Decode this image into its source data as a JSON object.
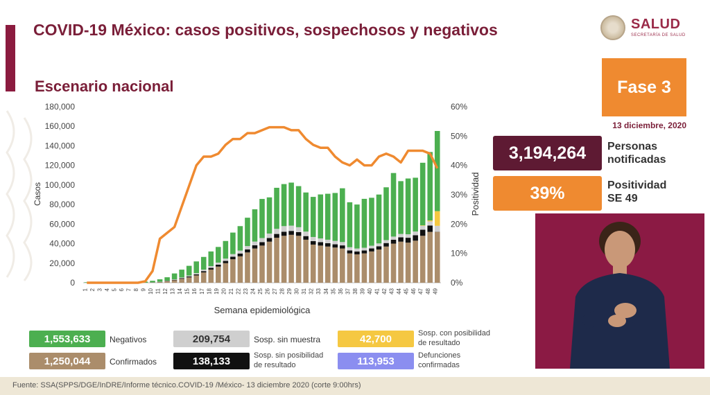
{
  "title": "COVID-19 México: casos positivos, sospechosos y negativos",
  "subtitle": "Escenario nacional",
  "logo": {
    "name": "SALUD",
    "sub": "SECRETARÍA DE SALUD"
  },
  "phase": "Fase 3",
  "date": "13 diciembre, 2020",
  "stats": [
    {
      "value": "3,194,264",
      "label_line1": "Personas",
      "label_line2": "notificadas",
      "color": "#5e1a33"
    },
    {
      "value": "39%",
      "label_line1": "Positividad",
      "label_line2": "SE 49",
      "color": "#ef8a30"
    }
  ],
  "legend": [
    {
      "value": "1,553,633",
      "label": "Negativos",
      "color": "#4caf50"
    },
    {
      "value": "209,754",
      "label": "Sosp. sin muestra",
      "color": "#cfcfcf"
    },
    {
      "value": "42,700",
      "label_line1": "Sosp. con posibilidad",
      "label_line2": "de resultado",
      "color": "#f5c842"
    },
    {
      "value": "1,250,044",
      "label": "Confirmados",
      "color": "#ab8d6b"
    },
    {
      "value": "138,133",
      "label_line1": "Sosp. sin posibilidad",
      "label_line2": "de resultado",
      "color": "#111111"
    },
    {
      "value": "113,953",
      "label_line1": "Defunciones",
      "label_line2": "confirmadas",
      "color": "#8b8ef0"
    }
  ],
  "footer": "Fuente: SSA(SPPS/DGE/InDRE/Informe técnico.COVID-19 /México- 13 diciembre 2020 (corte 9:00hrs)",
  "chart_data": {
    "type": "bar",
    "stacked": true,
    "xlabel": "Semana epidemiológica",
    "ylabel": "Casos",
    "y2label": "Positividad",
    "ylim": [
      0,
      180000
    ],
    "y2lim": [
      0,
      60
    ],
    "yticks": [
      "0",
      "20,000",
      "40,000",
      "60,000",
      "80,000",
      "100,000",
      "120,000",
      "140,000",
      "160,000",
      "180,000"
    ],
    "y2ticks": [
      "0%",
      "10%",
      "20%",
      "30%",
      "40%",
      "50%",
      "60%"
    ],
    "categories": [
      "1",
      "2",
      "3",
      "4",
      "5",
      "6",
      "7",
      "8",
      "9",
      "10",
      "11",
      "12",
      "13",
      "14",
      "15",
      "16",
      "17",
      "18",
      "19",
      "20",
      "21",
      "22",
      "23",
      "24",
      "25",
      "26",
      "27",
      "28",
      "29",
      "30",
      "31",
      "32",
      "33",
      "34",
      "35",
      "36",
      "37",
      "38",
      "39",
      "40",
      "41",
      "42",
      "43",
      "44",
      "45",
      "46",
      "47",
      "48",
      "49"
    ],
    "series": [
      {
        "name": "Confirmados",
        "color": "#ab8d6b",
        "values": [
          0,
          0,
          0,
          0,
          0,
          0,
          0,
          0,
          0,
          200,
          600,
          1500,
          2500,
          4000,
          5500,
          7500,
          10500,
          13500,
          16500,
          20000,
          24000,
          27000,
          31000,
          35000,
          38000,
          42000,
          46000,
          48000,
          49000,
          48000,
          44000,
          39000,
          38000,
          37000,
          36000,
          35000,
          30000,
          29000,
          30000,
          32000,
          34000,
          37000,
          40000,
          42000,
          41000,
          43000,
          48000,
          52000,
          52000
        ]
      },
      {
        "name": "Sosp. sin posibilidad de resultado",
        "color": "#111111",
        "values": [
          0,
          0,
          0,
          0,
          0,
          0,
          0,
          0,
          0,
          100,
          200,
          300,
          500,
          700,
          900,
          1100,
          1400,
          1700,
          2000,
          2300,
          2600,
          2900,
          3100,
          3300,
          3500,
          3700,
          3900,
          4100,
          4000,
          3800,
          3700,
          3600,
          3500,
          3400,
          3300,
          3200,
          3100,
          3000,
          3000,
          3100,
          3300,
          3600,
          4000,
          4500,
          5000,
          5600,
          6200,
          6500,
          200
        ]
      },
      {
        "name": "Sosp. sin muestra",
        "color": "#cfcfcf",
        "values": [
          0,
          0,
          0,
          0,
          0,
          0,
          0,
          0,
          0,
          100,
          200,
          300,
          500,
          700,
          900,
          1200,
          1500,
          1800,
          2100,
          2400,
          2700,
          3000,
          3400,
          3800,
          4200,
          4600,
          5200,
          5800,
          5400,
          5000,
          4600,
          4200,
          3800,
          3600,
          3500,
          3400,
          3200,
          3000,
          2800,
          2800,
          2900,
          3000,
          3200,
          3400,
          3600,
          3800,
          4000,
          4200,
          6000
        ]
      },
      {
        "name": "Sosp. con posibilidad de resultado",
        "color": "#f5c842",
        "values": [
          0,
          0,
          0,
          0,
          0,
          0,
          0,
          0,
          0,
          0,
          0,
          0,
          0,
          0,
          0,
          0,
          0,
          0,
          0,
          0,
          0,
          0,
          0,
          0,
          0,
          0,
          0,
          0,
          0,
          0,
          0,
          0,
          0,
          0,
          0,
          0,
          0,
          0,
          0,
          0,
          0,
          0,
          0,
          0,
          0,
          0,
          500,
          1000,
          15000
        ]
      },
      {
        "name": "Negativos",
        "color": "#4caf50",
        "values": [
          500,
          800,
          900,
          1000,
          1000,
          1000,
          1000,
          1000,
          1100,
          1600,
          2500,
          3500,
          6000,
          8000,
          10000,
          12000,
          13000,
          15000,
          16000,
          18000,
          22000,
          25000,
          29000,
          33000,
          40000,
          37000,
          42000,
          43000,
          44000,
          42000,
          40000,
          41000,
          45000,
          47000,
          49000,
          55000,
          46000,
          45000,
          50000,
          49000,
          50000,
          54000,
          65000,
          54000,
          57000,
          55000,
          64000,
          70000,
          82000
        ]
      }
    ],
    "positivity": {
      "name": "Positividad",
      "color": "#ef8a30",
      "values": [
        0,
        0,
        0,
        0,
        0,
        0,
        0,
        0,
        0.5,
        4,
        15,
        17,
        19,
        26,
        33,
        40,
        43,
        43,
        44,
        47,
        49,
        49,
        51,
        51,
        52,
        53,
        53,
        53,
        52,
        52,
        49,
        47,
        46,
        46,
        43,
        41,
        40,
        42,
        40,
        40,
        43,
        44,
        43,
        41,
        45,
        45,
        45,
        44,
        39
      ]
    }
  }
}
